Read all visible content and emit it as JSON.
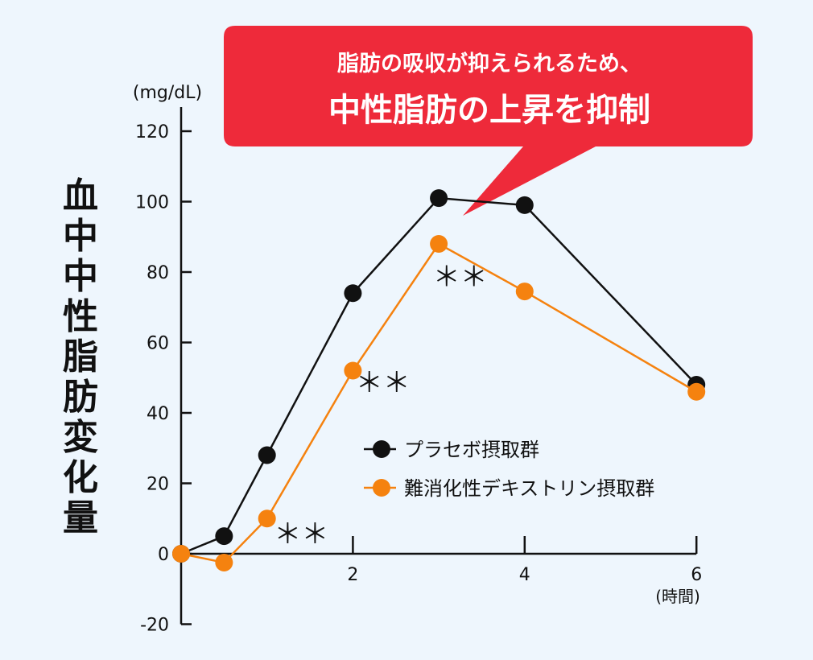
{
  "chart_data": {
    "type": "line",
    "ylabel": "血中中性脂肪変化量",
    "yunit": "(mg/dL)",
    "xunit": "(時間)",
    "ylim": [
      -20,
      120
    ],
    "xlim": [
      0,
      6
    ],
    "yticks": [
      -20,
      0,
      20,
      40,
      60,
      80,
      100,
      120
    ],
    "xticks": [
      2,
      4,
      6
    ],
    "grid": false,
    "legend_position": "center-right",
    "series": [
      {
        "name": "プラセボ摂取群",
        "color": "#111111",
        "x": [
          0,
          0.5,
          1,
          2,
          3,
          4,
          6
        ],
        "y": [
          0,
          5,
          28,
          74,
          101,
          99,
          48
        ]
      },
      {
        "name": "難消化性デキストリン摂取群",
        "color": "#f5820f",
        "x": [
          0,
          0.5,
          1,
          2,
          3,
          4,
          6
        ],
        "y": [
          0,
          -2.5,
          10,
          52,
          88,
          74.5,
          46
        ]
      }
    ],
    "annotations": [
      {
        "text": "＊＊",
        "x": 1.4,
        "y": 3
      },
      {
        "text": "＊＊",
        "x": 2.35,
        "y": 46
      },
      {
        "text": "＊＊",
        "x": 3.25,
        "y": 76
      }
    ],
    "callout": {
      "line1": "脂肪の吸収が抑えられるため、",
      "line2": "中性脂肪の上昇を抑制",
      "color": "#ee2a3a"
    }
  }
}
